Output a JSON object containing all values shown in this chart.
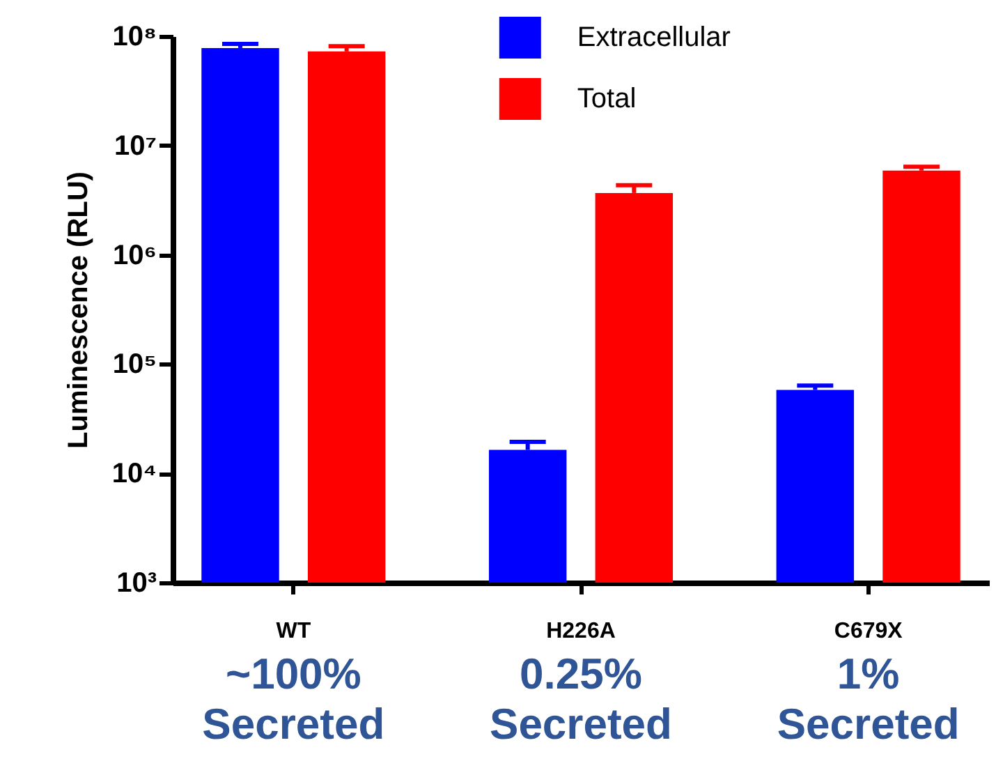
{
  "chart_data": {
    "type": "bar",
    "ylabel": "Luminescence (RLU)",
    "log": true,
    "categories": [
      "WT",
      "H226A",
      "C679X"
    ],
    "series": [
      {
        "name": "Extracellular",
        "color": "#0000ff",
        "values": [
          78000000,
          16400,
          58000
        ],
        "errors": [
          [
            78000000,
            85000000
          ],
          [
            16400,
            19400
          ],
          [
            58000,
            63500
          ]
        ]
      },
      {
        "name": "Total",
        "color": "#ff0000",
        "values": [
          72600000,
          3680000,
          5900000
        ],
        "errors": [
          [
            72600000,
            81000000
          ],
          [
            3680000,
            4340000
          ],
          [
            5900000,
            6400000
          ]
        ]
      }
    ],
    "ylim": [
      1000,
      100000000
    ],
    "yticks": [
      {
        "value": 1000,
        "label": "10³"
      },
      {
        "value": 10000,
        "label": "10⁴"
      },
      {
        "value": 100000,
        "label": "10⁵"
      },
      {
        "value": 1000000,
        "label": "10⁶"
      },
      {
        "value": 10000000,
        "label": "10⁷"
      },
      {
        "value": 100000000,
        "label": "10⁸"
      }
    ],
    "grid": false,
    "legend": "top",
    "annotations": [
      "~100%\nSecreted",
      "0.25%\nSecreted",
      "1%\nSecreted"
    ]
  }
}
